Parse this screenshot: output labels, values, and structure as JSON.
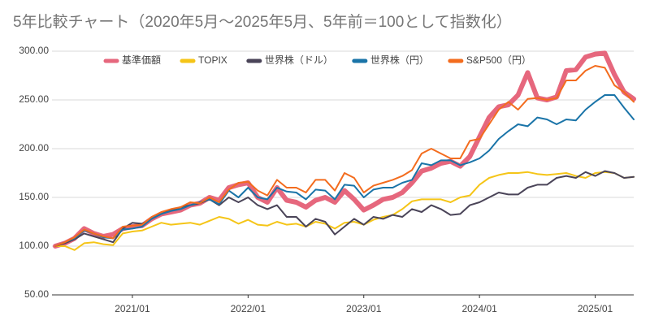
{
  "chart_data": {
    "type": "line",
    "title": "5年比較チャート（2020年5月〜2025年5月、5年前＝100として指数化）",
    "categories": [
      null,
      null,
      null,
      null,
      null,
      null,
      null,
      null,
      "2021/01",
      null,
      null,
      null,
      null,
      null,
      null,
      null,
      null,
      null,
      null,
      null,
      "2022/01",
      null,
      null,
      null,
      null,
      null,
      null,
      null,
      null,
      null,
      null,
      null,
      "2023/01",
      null,
      null,
      null,
      null,
      null,
      null,
      null,
      null,
      null,
      null,
      null,
      "2024/01",
      null,
      null,
      null,
      null,
      null,
      null,
      null,
      null,
      null,
      null,
      null,
      "2025/01",
      null,
      null,
      null,
      null
    ],
    "ylim": [
      50,
      300
    ],
    "yticks": [
      {
        "value": 50,
        "label": "50.00"
      },
      {
        "value": 100,
        "label": "100.00"
      },
      {
        "value": 150,
        "label": "150.00"
      },
      {
        "value": 200,
        "label": "200.00"
      },
      {
        "value": 250,
        "label": "250.00"
      },
      {
        "value": 300,
        "label": "300.00"
      }
    ],
    "grid": true,
    "legend": "top",
    "series": [
      {
        "name": "基準価額",
        "color": "#e6677d",
        "values": [
          100,
          103,
          108,
          118,
          113,
          110,
          112,
          118,
          120,
          121,
          128,
          133,
          135,
          137,
          142,
          144,
          150,
          147,
          160,
          163,
          165,
          150,
          145,
          160,
          147,
          145,
          140,
          147,
          150,
          145,
          157,
          148,
          137,
          142,
          148,
          150,
          155,
          165,
          177,
          180,
          185,
          187,
          182,
          192,
          212,
          232,
          243,
          245,
          255,
          278,
          252,
          250,
          253,
          280,
          281,
          294,
          297,
          298,
          276,
          258,
          251
        ]
      },
      {
        "name": "TOPIX",
        "color": "#f5c518",
        "values": [
          100,
          100,
          96,
          103,
          104,
          102,
          101,
          113,
          115,
          116,
          120,
          124,
          122,
          123,
          124,
          122,
          126,
          130,
          128,
          123,
          127,
          122,
          121,
          125,
          122,
          123,
          120,
          125,
          123,
          118,
          124,
          125,
          122,
          127,
          130,
          132,
          138,
          146,
          148,
          148,
          148,
          145,
          150,
          152,
          163,
          170,
          173,
          175,
          175,
          176,
          174,
          173,
          174,
          175,
          172,
          170,
          175,
          176,
          175,
          170,
          171
        ]
      },
      {
        "name": "世界株（ドル）",
        "color": "#4a4458",
        "values": [
          100,
          103,
          107,
          113,
          110,
          107,
          104,
          118,
          124,
          123,
          128,
          133,
          137,
          140,
          142,
          144,
          148,
          142,
          150,
          145,
          150,
          142,
          138,
          142,
          130,
          130,
          120,
          128,
          125,
          112,
          120,
          128,
          122,
          130,
          128,
          132,
          130,
          138,
          135,
          142,
          138,
          132,
          133,
          142,
          145,
          150,
          155,
          153,
          153,
          160,
          163,
          163,
          170,
          172,
          170,
          176,
          172,
          177,
          175,
          170,
          171
        ]
      },
      {
        "name": "世界株（円）",
        "color": "#1a74a8",
        "values": [
          100,
          104,
          108,
          116,
          113,
          109,
          108,
          117,
          118,
          120,
          128,
          133,
          136,
          138,
          142,
          145,
          148,
          143,
          157,
          150,
          160,
          150,
          148,
          160,
          156,
          155,
          148,
          158,
          157,
          148,
          163,
          162,
          150,
          158,
          160,
          160,
          165,
          168,
          185,
          183,
          188,
          188,
          183,
          186,
          190,
          198,
          210,
          218,
          225,
          223,
          232,
          230,
          225,
          230,
          229,
          240,
          248,
          255,
          255,
          242,
          230
        ]
      },
      {
        "name": "S&P500（円）",
        "color": "#f36c1e",
        "values": [
          100,
          104,
          109,
          117,
          113,
          110,
          108,
          120,
          121,
          122,
          130,
          135,
          138,
          140,
          145,
          144,
          150,
          145,
          158,
          165,
          166,
          157,
          152,
          168,
          160,
          160,
          155,
          168,
          168,
          157,
          175,
          170,
          155,
          162,
          165,
          168,
          172,
          178,
          195,
          200,
          195,
          190,
          190,
          208,
          210,
          225,
          240,
          248,
          240,
          251,
          252,
          250,
          252,
          270,
          270,
          280,
          285,
          283,
          265,
          258,
          248
        ]
      }
    ]
  }
}
